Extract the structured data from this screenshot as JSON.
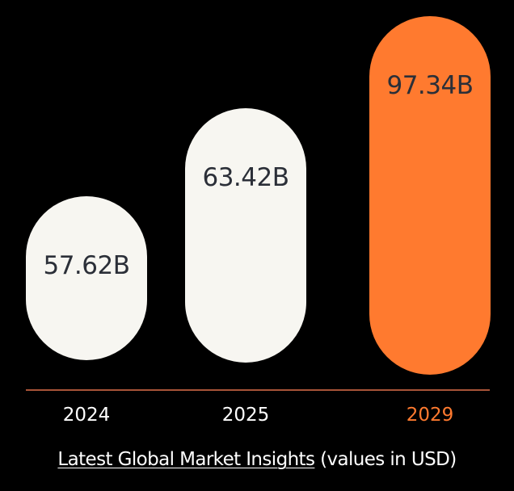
{
  "chart_data": {
    "type": "bar",
    "categories": [
      "2024",
      "2025",
      "2029"
    ],
    "values": [
      57.62,
      63.42,
      97.34
    ],
    "value_labels": [
      "57.62B",
      "63.42B",
      "97.34B"
    ],
    "highlight_index": 2,
    "grid": false,
    "colors": {
      "background": "#000000",
      "bar": "#f7f6f1",
      "highlight": "#ff7a2f",
      "value_text": "#2b2f38",
      "axis_line": "#e0704a",
      "category_text": "#ffffff",
      "category_highlight_text": "#ff7a2f"
    }
  },
  "caption": {
    "link_text": "Latest Global Market Insights",
    "rest_text": "(values in USD)"
  }
}
